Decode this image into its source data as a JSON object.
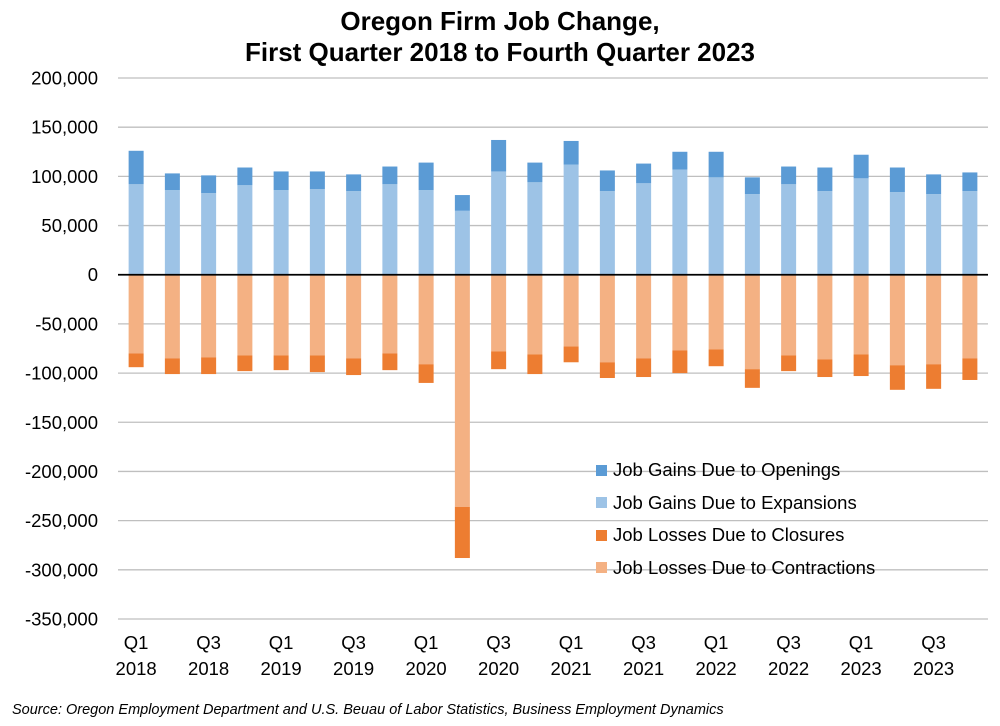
{
  "chart_data": {
    "type": "bar",
    "stacked": true,
    "title": "Oregon Firm Job Change,",
    "subtitle": "First Quarter 2018 to Fourth Quarter 2023",
    "source": "Source: Oregon Employment Department and U.S. Beuau of Labor Statistics, Business Employment Dynamics",
    "ylim": [
      -350000,
      200000
    ],
    "yticks": [
      200000,
      150000,
      100000,
      50000,
      0,
      -50000,
      -100000,
      -150000,
      -200000,
      -250000,
      -300000,
      -350000
    ],
    "ytick_labels": [
      "200,000",
      "150,000",
      "100,000",
      "50,000",
      "0",
      "-50,000",
      "-100,000",
      "-150,000",
      "-200,000",
      "-250,000",
      "-300,000",
      "-350,000"
    ],
    "grid": true,
    "legend_position": "lower-right",
    "categories": [
      "2018Q1",
      "2018Q2",
      "2018Q3",
      "2018Q4",
      "2019Q1",
      "2019Q2",
      "2019Q3",
      "2019Q4",
      "2020Q1",
      "2020Q2",
      "2020Q3",
      "2020Q4",
      "2021Q1",
      "2021Q2",
      "2021Q3",
      "2021Q4",
      "2022Q1",
      "2022Q2",
      "2022Q3",
      "2022Q4",
      "2023Q1",
      "2023Q2",
      "2023Q3",
      "2023Q4"
    ],
    "x_tick_labels": [
      {
        "index": 0,
        "quarter": "Q1",
        "year": "2018"
      },
      {
        "index": 2,
        "quarter": "Q3",
        "year": "2018"
      },
      {
        "index": 4,
        "quarter": "Q1",
        "year": "2019"
      },
      {
        "index": 6,
        "quarter": "Q3",
        "year": "2019"
      },
      {
        "index": 8,
        "quarter": "Q1",
        "year": "2020"
      },
      {
        "index": 10,
        "quarter": "Q3",
        "year": "2020"
      },
      {
        "index": 12,
        "quarter": "Q1",
        "year": "2021"
      },
      {
        "index": 14,
        "quarter": "Q3",
        "year": "2021"
      },
      {
        "index": 16,
        "quarter": "Q1",
        "year": "2022"
      },
      {
        "index": 18,
        "quarter": "Q3",
        "year": "2022"
      },
      {
        "index": 20,
        "quarter": "Q1",
        "year": "2023"
      },
      {
        "index": 22,
        "quarter": "Q3",
        "year": "2023"
      }
    ],
    "series": [
      {
        "name": "Job Gains Due to Openings",
        "color": "#5b9bd5",
        "stack": "pos",
        "values": [
          34000,
          17000,
          18000,
          18000,
          19000,
          18000,
          17000,
          18000,
          28000,
          16000,
          32000,
          20000,
          24000,
          21000,
          20000,
          18000,
          26000,
          17000,
          18000,
          24000,
          24000,
          25000,
          20000,
          19000
        ]
      },
      {
        "name": "Job Gains Due to Expansions",
        "color": "#9dc3e6",
        "stack": "pos",
        "values": [
          92000,
          86000,
          83000,
          91000,
          86000,
          87000,
          85000,
          92000,
          86000,
          65000,
          105000,
          94000,
          112000,
          85000,
          93000,
          107000,
          99000,
          82000,
          92000,
          85000,
          98000,
          84000,
          82000,
          85000
        ]
      },
      {
        "name": "Job Losses Due to Closures",
        "color": "#ed7d31",
        "stack": "neg",
        "values": [
          -14000,
          -16000,
          -17000,
          -16000,
          -15000,
          -17000,
          -17000,
          -17000,
          -19000,
          -52000,
          -18000,
          -20000,
          -16000,
          -16000,
          -19000,
          -23000,
          -17000,
          -19000,
          -16000,
          -18000,
          -22000,
          -25000,
          -25000,
          -22000
        ]
      },
      {
        "name": "Job Losses Due to Contractions",
        "color": "#f4b183",
        "stack": "neg",
        "values": [
          -80000,
          -85000,
          -84000,
          -82000,
          -82000,
          -82000,
          -85000,
          -80000,
          -91000,
          -236000,
          -78000,
          -81000,
          -73000,
          -89000,
          -85000,
          -77000,
          -76000,
          -96000,
          -82000,
          -86000,
          -81000,
          -92000,
          -91000,
          -85000
        ]
      }
    ]
  }
}
